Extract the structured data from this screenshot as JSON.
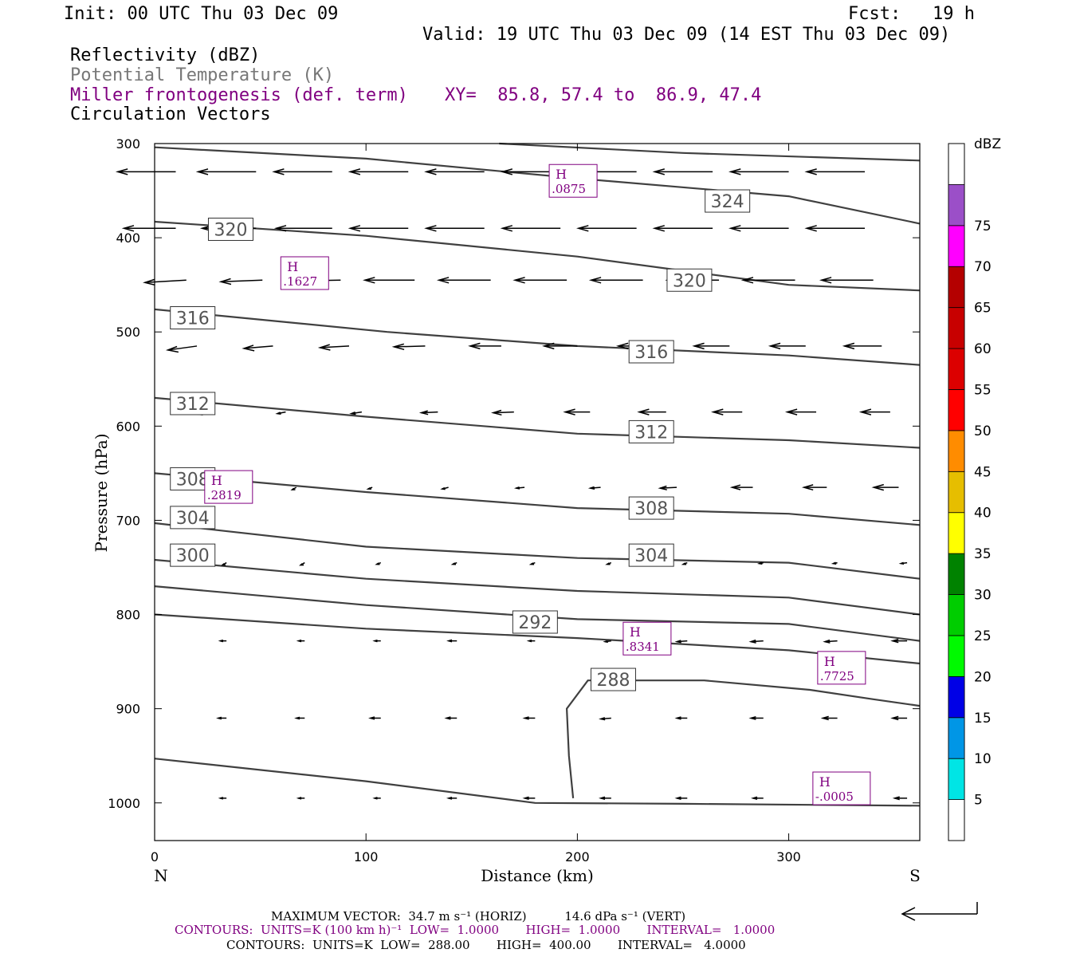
{
  "header": {
    "init": "Init: 00 UTC Thu 03 Dec 09",
    "fcst": "Fcst:   19 h",
    "valid": "Valid: 19 UTC Thu 03 Dec 09 (14 EST Thu 03 Dec 09)",
    "field1": "Reflectivity (dBZ)",
    "field2": "Potential Temperature (K)",
    "field3": "Miller frontogenesis (def. term)",
    "xy": "XY=  85.8, 57.4 to  86.9, 47.4",
    "field4": "Circulation Vectors"
  },
  "colors": {
    "frontogenesis": "#800080",
    "theta": "#404040",
    "theta_label": "#555555",
    "text": "#000000"
  },
  "colorbar": {
    "unit": "dBZ",
    "levels": [
      {
        "label": "5",
        "color": "#00e5e5"
      },
      {
        "label": "10",
        "color": "#0096e6"
      },
      {
        "label": "15",
        "color": "#0000e6"
      },
      {
        "label": "20",
        "color": "#00fa00"
      },
      {
        "label": "25",
        "color": "#00cd00"
      },
      {
        "label": "30",
        "color": "#008200"
      },
      {
        "label": "35",
        "color": "#ffff00"
      },
      {
        "label": "40",
        "color": "#e6be00"
      },
      {
        "label": "45",
        "color": "#ff8c00"
      },
      {
        "label": "50",
        "color": "#ff0000"
      },
      {
        "label": "55",
        "color": "#dc0000"
      },
      {
        "label": "60",
        "color": "#c80000"
      },
      {
        "label": "65",
        "color": "#b40000"
      },
      {
        "label": "70",
        "color": "#ff00ff"
      },
      {
        "label": "75",
        "color": "#9b4fc8"
      }
    ]
  },
  "chart_data": {
    "type": "contour",
    "xlabel": "Distance (km)",
    "ylabel": "Pressure (hPa)",
    "xlim": [
      0,
      362
    ],
    "ylim": [
      1040,
      300
    ],
    "x_ticks": [
      "0",
      "100",
      "200",
      "300"
    ],
    "x_tick_values": [
      0,
      100,
      200,
      300
    ],
    "y_ticks": [
      "300",
      "400",
      "500",
      "600",
      "700",
      "800",
      "900",
      "1000"
    ],
    "y_tick_values": [
      300,
      400,
      500,
      600,
      700,
      800,
      900,
      1000
    ],
    "left_end_label": "N",
    "right_end_label": "S",
    "theta_contours": [
      {
        "points": [
          [
            0,
            304
          ],
          [
            100,
            316
          ],
          [
            200,
            337
          ],
          [
            300,
            356
          ],
          [
            362,
            385
          ]
        ]
      },
      {
        "points": [
          [
            163,
            300
          ],
          [
            250,
            310
          ],
          [
            362,
            318
          ]
        ]
      },
      {
        "points": [
          [
            0,
            383
          ],
          [
            100,
            398
          ],
          [
            200,
            420
          ],
          [
            300,
            450
          ],
          [
            362,
            456
          ]
        ]
      },
      {
        "points": [
          [
            0,
            476
          ],
          [
            110,
            500
          ],
          [
            200,
            515
          ],
          [
            300,
            525
          ],
          [
            362,
            535
          ]
        ]
      },
      {
        "points": [
          [
            0,
            570
          ],
          [
            100,
            590
          ],
          [
            200,
            608
          ],
          [
            300,
            615
          ],
          [
            362,
            623
          ]
        ]
      },
      {
        "points": [
          [
            0,
            650
          ],
          [
            100,
            670
          ],
          [
            200,
            687
          ],
          [
            300,
            693
          ],
          [
            362,
            705
          ]
        ]
      },
      {
        "points": [
          [
            0,
            703
          ],
          [
            100,
            728
          ],
          [
            200,
            740
          ],
          [
            300,
            745
          ],
          [
            362,
            762
          ]
        ]
      },
      {
        "points": [
          [
            0,
            742
          ],
          [
            100,
            762
          ],
          [
            200,
            775
          ],
          [
            300,
            782
          ],
          [
            362,
            800
          ]
        ]
      },
      {
        "points": [
          [
            0,
            770
          ],
          [
            100,
            790
          ],
          [
            200,
            805
          ],
          [
            300,
            810
          ],
          [
            362,
            828
          ]
        ]
      },
      {
        "points": [
          [
            0,
            800
          ],
          [
            100,
            815
          ],
          [
            200,
            825
          ],
          [
            300,
            838
          ],
          [
            362,
            852
          ]
        ]
      },
      {
        "points": [
          [
            0,
            953
          ],
          [
            100,
            977
          ],
          [
            180,
            1000
          ],
          [
            250,
            1001
          ],
          [
            362,
            1003
          ]
        ]
      },
      {
        "points": [
          [
            198,
            995
          ],
          [
            196,
            950
          ],
          [
            195,
            900
          ],
          [
            205,
            870
          ],
          [
            260,
            870
          ],
          [
            310,
            880
          ],
          [
            340,
            890
          ],
          [
            362,
            897
          ]
        ]
      }
    ],
    "theta_labels": [
      {
        "text": "324",
        "x": 271,
        "p": 361
      },
      {
        "text": "320",
        "x": 36,
        "p": 391
      },
      {
        "text": "320",
        "x": 253,
        "p": 445
      },
      {
        "text": "316",
        "x": 18,
        "p": 485
      },
      {
        "text": "316",
        "x": 235,
        "p": 521
      },
      {
        "text": "312",
        "x": 18,
        "p": 576
      },
      {
        "text": "312",
        "x": 235,
        "p": 606
      },
      {
        "text": "308",
        "x": 18,
        "p": 656
      },
      {
        "text": "308",
        "x": 235,
        "p": 687
      },
      {
        "text": "304",
        "x": 18,
        "p": 697
      },
      {
        "text": "304",
        "x": 235,
        "p": 737
      },
      {
        "text": "300",
        "x": 18,
        "p": 737
      },
      {
        "text": "292",
        "x": 180,
        "p": 808
      },
      {
        "text": "288",
        "x": 217,
        "p": 869
      }
    ],
    "frontogenesis_maxima": [
      {
        "label": "H",
        "value": ".0875",
        "x": 198,
        "p": 340
      },
      {
        "label": "H",
        "value": ".1627",
        "x": 71,
        "p": 438
      },
      {
        "label": "H",
        "value": ".2819",
        "x": 35,
        "p": 665
      },
      {
        "label": "H",
        "value": ".8341",
        "x": 233,
        "p": 826
      },
      {
        "label": "H",
        "value": ".7725",
        "x": 325,
        "p": 857
      },
      {
        "label": "H",
        "value": "-.0005",
        "x": 325,
        "p": 985
      }
    ],
    "vector_rows": [
      {
        "p": 330,
        "x": [
          10,
          48,
          84,
          120,
          156,
          192,
          228,
          264,
          300,
          336
        ],
        "u": [
          28,
          28,
          28,
          28,
          28,
          28,
          28,
          28,
          28,
          28
        ],
        "v": [
          0,
          0,
          0,
          0,
          0,
          0,
          0,
          0,
          0,
          0
        ]
      },
      {
        "p": 390,
        "x": [
          10,
          48,
          84,
          120,
          156,
          192,
          228,
          264,
          300,
          336
        ],
        "u": [
          25,
          26,
          27,
          28,
          28,
          28,
          28,
          28,
          28,
          28
        ],
        "v": [
          0,
          0,
          0,
          0,
          0,
          0,
          0,
          0,
          0,
          0
        ]
      },
      {
        "p": 445,
        "x": [
          15,
          51,
          88,
          123,
          159,
          195,
          231,
          267,
          303,
          340
        ],
        "u": [
          20,
          20,
          20,
          24,
          25,
          25,
          25,
          25,
          25,
          25
        ],
        "v": [
          3,
          2,
          1,
          0,
          0,
          0,
          0,
          0,
          0,
          0
        ]
      },
      {
        "p": 515,
        "x": [
          20,
          56,
          92,
          128,
          164,
          200,
          236,
          272,
          308,
          344
        ],
        "u": [
          14,
          14,
          14,
          15,
          15,
          16,
          17,
          17,
          17,
          18
        ],
        "v": [
          5,
          3,
          2,
          1,
          0,
          0,
          0,
          0,
          0,
          0
        ]
      },
      {
        "p": 585,
        "x": [
          25,
          62,
          98,
          134,
          170,
          206,
          242,
          278,
          313,
          348
        ],
        "u": [
          4,
          4,
          5,
          8,
          10,
          12,
          13,
          14,
          14,
          14
        ],
        "v": [
          3,
          2,
          2,
          1,
          1,
          0,
          0,
          0,
          0,
          0
        ]
      },
      {
        "p": 665,
        "x": [
          30,
          67,
          103,
          139,
          175,
          211,
          247,
          283,
          318,
          352
        ],
        "u": [
          2,
          2,
          2,
          3,
          4,
          5,
          8,
          10,
          11,
          12
        ],
        "v": [
          3,
          3,
          2,
          2,
          1,
          1,
          1,
          0,
          0,
          0
        ]
      },
      {
        "p": 745,
        "x": [
          34,
          71,
          107,
          143,
          180,
          216,
          252,
          288,
          323,
          356
        ],
        "u": [
          2,
          2,
          2,
          2,
          2,
          2,
          2,
          2,
          2,
          3
        ],
        "v": [
          3,
          3,
          2,
          2,
          2,
          2,
          2,
          1,
          1,
          1
        ]
      },
      {
        "p": 828,
        "x": [
          34,
          71,
          107,
          143,
          180,
          216,
          252,
          288,
          323,
          356
        ],
        "u": [
          3,
          3,
          3,
          4,
          3,
          3,
          5,
          6,
          6,
          7
        ],
        "v": [
          0,
          0,
          0,
          0,
          0,
          1,
          1,
          1,
          1,
          0
        ]
      },
      {
        "p": 910,
        "x": [
          34,
          71,
          107,
          143,
          180,
          216,
          252,
          288,
          323,
          356
        ],
        "u": [
          4,
          4,
          5,
          5,
          5,
          5,
          5,
          6,
          7,
          7
        ],
        "v": [
          0,
          0,
          0,
          0,
          0,
          1,
          0,
          0,
          0,
          0
        ]
      },
      {
        "p": 995,
        "x": [
          34,
          71,
          107,
          143,
          180,
          216,
          252,
          288,
          323,
          356
        ],
        "u": [
          3,
          3,
          3,
          4,
          5,
          5,
          5,
          5,
          6,
          6
        ],
        "v": [
          0,
          0,
          0,
          0,
          0,
          0,
          0,
          0,
          0,
          0
        ]
      }
    ]
  },
  "footer": {
    "max_vector": "MAXIMUM VECTOR:  34.7 m s⁻¹ (HORIZ)          14.6 dPa s⁻¹ (VERT)",
    "contours_front": "CONTOURS:  UNITS=K (100 km h)⁻¹  LOW=  1.0000       HIGH=  1.0000       INTERVAL=   1.0000",
    "contours_theta": "CONTOURS:  UNITS=K  LOW=  288.00       HIGH=  400.00       INTERVAL=   4.0000"
  }
}
